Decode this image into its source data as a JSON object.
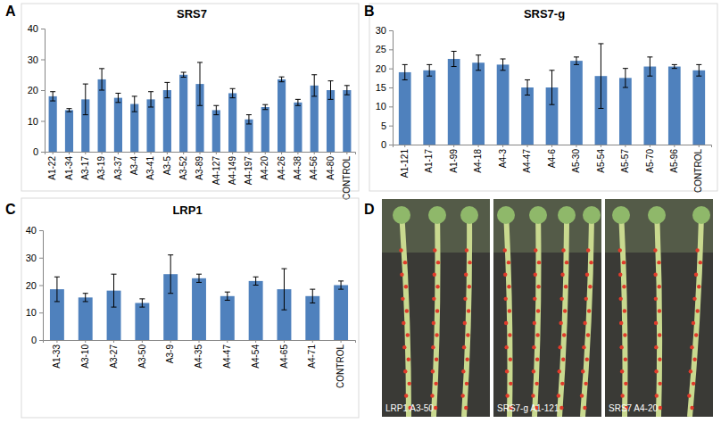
{
  "chart_data": [
    {
      "type": "bar",
      "panel": "A",
      "title": "SRS7",
      "categories": [
        "A1-22",
        "A1-34",
        "A3-17",
        "A3-19",
        "A3-37",
        "A3-4",
        "A3-41",
        "A3-5",
        "A3-52",
        "A3-89",
        "A4-127",
        "A4-149",
        "A4-197",
        "A4-20",
        "A4-26",
        "A4-38",
        "A4-56",
        "A4-80",
        "CONTROL"
      ],
      "values": [
        18,
        13.5,
        17,
        23.5,
        17.5,
        15.5,
        17,
        20,
        25,
        22,
        13.5,
        19,
        10.5,
        14.5,
        23.5,
        16,
        21.5,
        20,
        20
      ],
      "errors": [
        1.5,
        0.5,
        5,
        3.5,
        1.5,
        2.5,
        2.5,
        2.5,
        0.8,
        7,
        1.5,
        1.5,
        1.5,
        0.8,
        0.8,
        1,
        3.5,
        3,
        1.5
      ],
      "color": "#4f81bd",
      "ylim": [
        0,
        40
      ],
      "yticks": [
        0,
        10,
        20,
        30,
        40
      ],
      "grid": false
    },
    {
      "type": "bar",
      "panel": "B",
      "title": "SRS7-g",
      "categories": [
        "A1-121",
        "A1-17",
        "A1-99",
        "A4-18",
        "A4-3",
        "A4-47",
        "A4-6",
        "A5-30",
        "A5-54",
        "A5-57",
        "A5-70",
        "A5-96",
        "CONTROL"
      ],
      "values": [
        19,
        19.5,
        22.5,
        21.5,
        21,
        15,
        15,
        22,
        18,
        17.5,
        20.5,
        20.5,
        19.5
      ],
      "errors": [
        2,
        1.5,
        2,
        2,
        1.5,
        2,
        4.5,
        1,
        8.5,
        2.5,
        2.5,
        0.5,
        1.5
      ],
      "color": "#4f81bd",
      "ylim": [
        0,
        30
      ],
      "yticks": [
        0,
        5,
        10,
        15,
        20,
        25,
        30
      ],
      "grid": false
    },
    {
      "type": "bar",
      "panel": "C",
      "title": "LRP1",
      "categories": [
        "A1-33",
        "A3-10",
        "A3-27",
        "A3-50",
        "A3-9",
        "A4-35",
        "A4-47",
        "A4-54",
        "A4-65",
        "A4-71",
        "CONTROL"
      ],
      "values": [
        18.5,
        15.5,
        18,
        13.5,
        24,
        22.5,
        16,
        21.5,
        18.5,
        16,
        20
      ],
      "errors": [
        4.5,
        1.5,
        6,
        1.5,
        7,
        1.5,
        1.5,
        1.5,
        7.5,
        2.5,
        1.5
      ],
      "color": "#4f81bd",
      "ylim": [
        0,
        40
      ],
      "yticks": [
        0,
        10,
        20,
        30,
        40
      ],
      "grid": false
    }
  ],
  "photo": {
    "panel": "D",
    "captions": [
      "LRP1 A3-50",
      "SRS7-g A1-121",
      "SRS7 A4-20"
    ]
  }
}
